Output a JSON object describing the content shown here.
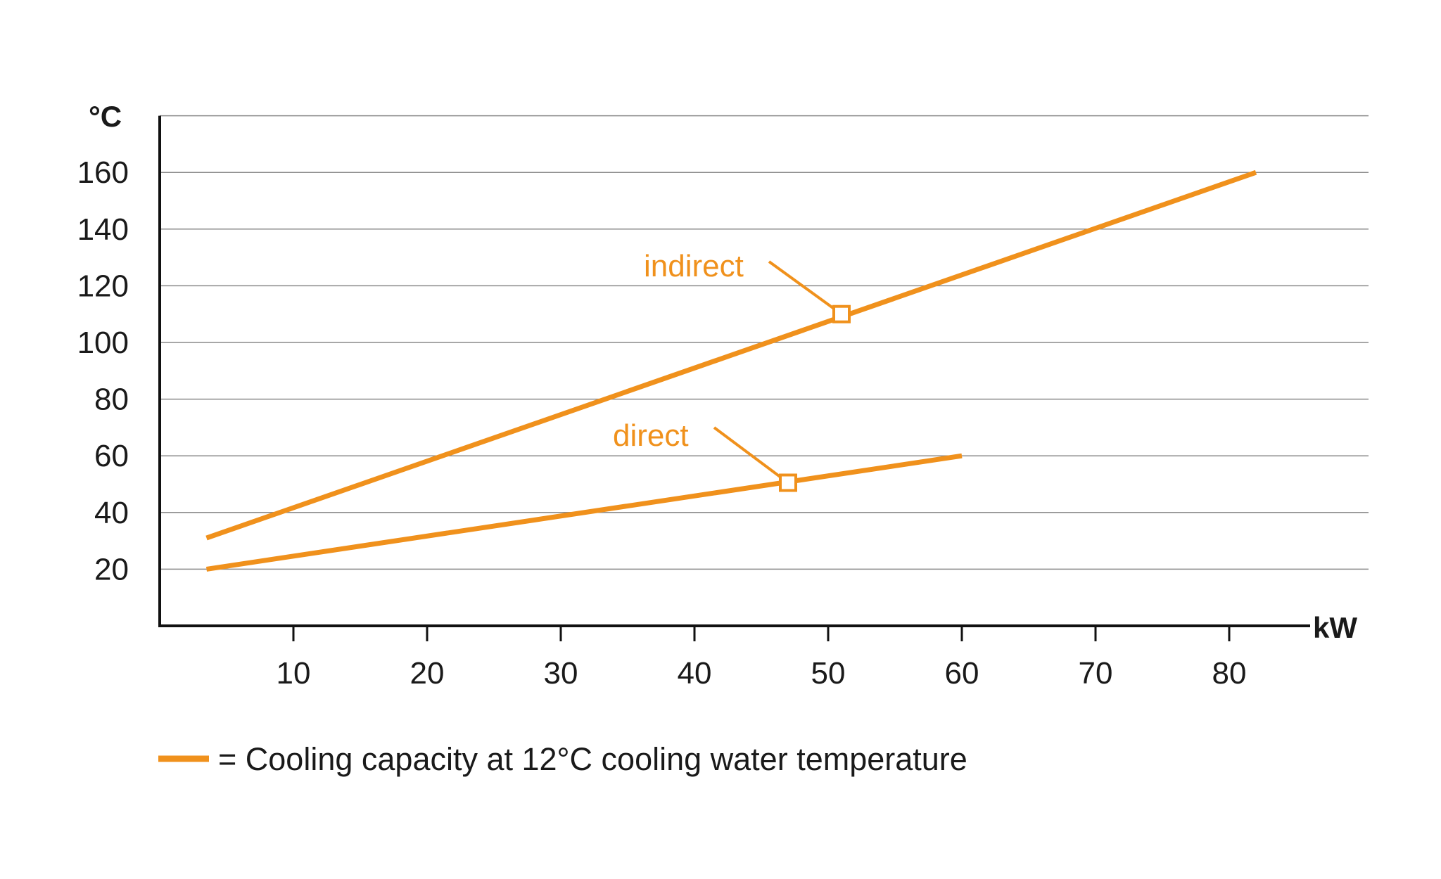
{
  "chart_data": {
    "type": "line",
    "title": "",
    "xlabel": "kW",
    "ylabel": "°C",
    "xlim": [
      0,
      90
    ],
    "ylim": [
      0,
      180
    ],
    "x_ticks": [
      "10",
      "20",
      "30",
      "40",
      "50",
      "60",
      "70",
      "80"
    ],
    "y_ticks": [
      "20",
      "40",
      "60",
      "80",
      "100",
      "120",
      "140",
      "160"
    ],
    "grid": "horizontal",
    "series": [
      {
        "name": "indirect",
        "x": [
          3.5,
          82
        ],
        "y": [
          31,
          160
        ],
        "marker_at": [
          51,
          110
        ]
      },
      {
        "name": "direct",
        "x": [
          3.5,
          60
        ],
        "y": [
          20,
          60
        ],
        "marker_at": [
          47,
          50.5
        ]
      }
    ],
    "legend": {
      "text": "= Cooling capacity at 12°C cooling water temperature",
      "placement": "bottom-left"
    }
  },
  "colors": {
    "series": "#f0911c",
    "axis": "#111111",
    "grid": "#8a8a8a",
    "text": "#1a1a1a"
  }
}
